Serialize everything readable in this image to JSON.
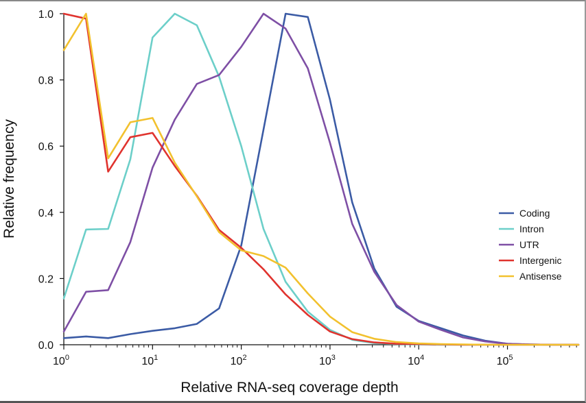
{
  "chart_data": {
    "type": "line",
    "xlabel": "Relative RNA-seq coverage depth",
    "ylabel": "Relative frequency",
    "x_scale": "log",
    "xlim": [
      1,
      631000
    ],
    "ylim": [
      0,
      1.0
    ],
    "grid": false,
    "legend_position": "right",
    "x_ticks": [
      {
        "value": 1,
        "base": "10",
        "exp": "0"
      },
      {
        "value": 10,
        "base": "10",
        "exp": "1"
      },
      {
        "value": 100,
        "base": "10",
        "exp": "2"
      },
      {
        "value": 1000,
        "base": "10",
        "exp": "3"
      },
      {
        "value": 10000,
        "base": "10",
        "exp": "4"
      },
      {
        "value": 100000,
        "base": "10",
        "exp": "5"
      }
    ],
    "y_ticks": [
      "0.0",
      "0.2",
      "0.4",
      "0.6",
      "0.8",
      "1.0"
    ],
    "series": [
      {
        "name": "Coding",
        "color": "#3b5ba5",
        "x": [
          1,
          1.78,
          3.16,
          5.62,
          10,
          17.8,
          31.6,
          56.2,
          100,
          178,
          316,
          562,
          1000,
          1780,
          3160,
          5620,
          10000,
          17800,
          31600,
          56200,
          100000,
          178000,
          316000,
          631000
        ],
        "y": [
          0.02,
          0.025,
          0.02,
          0.032,
          0.042,
          0.05,
          0.063,
          0.11,
          0.3,
          0.65,
          1.0,
          0.99,
          0.74,
          0.43,
          0.23,
          0.115,
          0.072,
          0.05,
          0.028,
          0.012,
          0.003,
          0.001,
          0.0,
          0.0
        ]
      },
      {
        "name": "Intron",
        "color": "#6ccfc9",
        "x": [
          1,
          1.78,
          3.16,
          5.62,
          10,
          17.8,
          31.6,
          56.2,
          100,
          178,
          316,
          562,
          1000,
          1780,
          3160,
          5620,
          10000,
          17800,
          31600,
          56200,
          100000,
          178000,
          316000,
          631000
        ],
        "y": [
          0.14,
          0.348,
          0.35,
          0.56,
          0.928,
          1.0,
          0.965,
          0.81,
          0.6,
          0.35,
          0.19,
          0.1,
          0.045,
          0.015,
          0.005,
          0.002,
          0.001,
          0.0,
          0.0,
          0.0,
          0.0,
          0.0,
          0.0,
          0.0
        ]
      },
      {
        "name": "UTR",
        "color": "#7e4fa5",
        "x": [
          1,
          1.78,
          3.16,
          5.62,
          10,
          17.8,
          31.6,
          56.2,
          100,
          178,
          316,
          562,
          1000,
          1780,
          3160,
          5620,
          10000,
          17800,
          31600,
          56200,
          100000,
          178000,
          316000,
          631000
        ],
        "y": [
          0.04,
          0.16,
          0.165,
          0.31,
          0.535,
          0.68,
          0.788,
          0.815,
          0.9,
          1.0,
          0.955,
          0.835,
          0.61,
          0.365,
          0.22,
          0.12,
          0.07,
          0.045,
          0.022,
          0.01,
          0.003,
          0.001,
          0.0,
          0.0
        ]
      },
      {
        "name": "Intergenic",
        "color": "#e0332e",
        "x": [
          1,
          1.78,
          3.16,
          5.62,
          10,
          17.8,
          31.6,
          56.2,
          100,
          178,
          316,
          562,
          1000,
          1780,
          3160,
          5620,
          10000,
          17800,
          31600,
          56200,
          100000,
          178000,
          316000,
          631000
        ],
        "y": [
          1.0,
          0.985,
          0.523,
          0.627,
          0.64,
          0.54,
          0.45,
          0.347,
          0.293,
          0.228,
          0.152,
          0.09,
          0.04,
          0.017,
          0.007,
          0.003,
          0.002,
          0.001,
          0.0,
          0.0,
          0.0,
          0.0,
          0.0,
          0.0
        ]
      },
      {
        "name": "Antisense",
        "color": "#f2c12e",
        "x": [
          1,
          1.78,
          3.16,
          5.62,
          10,
          17.8,
          31.6,
          56.2,
          100,
          178,
          316,
          562,
          1000,
          1780,
          3160,
          5620,
          10000,
          17800,
          31600,
          56200,
          100000,
          178000,
          316000,
          631000
        ],
        "y": [
          0.89,
          1.0,
          0.563,
          0.672,
          0.685,
          0.55,
          0.448,
          0.34,
          0.285,
          0.268,
          0.233,
          0.155,
          0.085,
          0.038,
          0.018,
          0.008,
          0.004,
          0.002,
          0.001,
          0.0,
          0.0,
          0.0,
          0.0,
          0.0
        ]
      }
    ]
  }
}
